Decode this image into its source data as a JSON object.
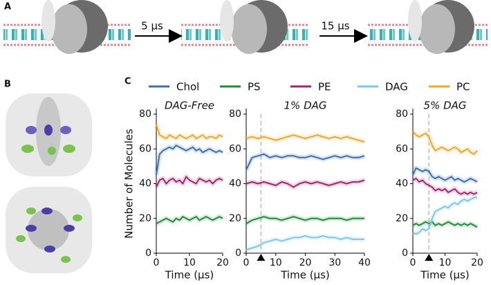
{
  "panel_labels": [
    "A",
    "B",
    "C"
  ],
  "arrows": [
    "5 µs",
    "15 µs"
  ],
  "chart_data": [
    {
      "type": "line",
      "title": "DAG-Free",
      "xlabel": "Time (µs)",
      "ylabel": "Number of Molecules",
      "x": [
        0,
        1,
        2,
        3,
        4,
        5,
        6,
        7,
        8,
        9,
        10,
        11,
        12,
        13,
        14,
        15,
        16,
        17,
        18,
        19,
        20
      ],
      "xlim": [
        0,
        20
      ],
      "xticks": [
        0,
        10,
        20
      ],
      "ylim": [
        0,
        80
      ],
      "yticks": [
        0,
        20,
        40,
        60,
        80
      ],
      "series": [
        {
          "name": "Chol",
          "color": "#3a6fb0",
          "values": [
            45,
            57,
            59,
            60,
            61,
            60,
            62,
            61,
            60,
            59,
            60,
            61,
            59,
            60,
            58,
            59,
            60,
            59,
            58,
            59,
            58
          ]
        },
        {
          "name": "PS",
          "color": "#1f8a3a",
          "values": [
            17,
            18,
            19,
            20,
            19,
            18,
            20,
            19,
            21,
            20,
            19,
            20,
            21,
            19,
            20,
            21,
            20,
            19,
            20,
            21,
            20
          ]
        },
        {
          "name": "PE",
          "color": "#a3246f",
          "values": [
            38,
            42,
            43,
            40,
            42,
            43,
            41,
            42,
            40,
            44,
            42,
            41,
            40,
            43,
            42,
            41,
            42,
            40,
            42,
            43,
            42
          ]
        },
        {
          "name": "PC",
          "color": "#f5a623",
          "values": [
            74,
            68,
            67,
            66,
            68,
            67,
            66,
            68,
            67,
            66,
            67,
            68,
            66,
            67,
            68,
            66,
            67,
            67,
            66,
            68,
            67
          ]
        }
      ]
    },
    {
      "type": "line",
      "title": "1% DAG",
      "xlabel": "Time (µs)",
      "x": [
        0,
        2,
        4,
        6,
        8,
        10,
        12,
        14,
        16,
        18,
        20,
        22,
        24,
        26,
        28,
        30,
        32,
        34,
        36,
        38,
        40
      ],
      "xlim": [
        0,
        40
      ],
      "xticks": [
        0,
        10,
        20,
        30,
        40
      ],
      "ylim": [
        0,
        80
      ],
      "yticks": [
        0,
        20,
        40,
        60,
        80
      ],
      "marker_x": 5,
      "series": [
        {
          "name": "Chol",
          "color": "#3a6fb0",
          "values": [
            48,
            55,
            56,
            57,
            55,
            56,
            55,
            56,
            56,
            55,
            55,
            56,
            55,
            54,
            55,
            56,
            55,
            56,
            55,
            55,
            56
          ]
        },
        {
          "name": "PS",
          "color": "#1f8a3a",
          "values": [
            17,
            19,
            20,
            21,
            20,
            20,
            19,
            20,
            21,
            20,
            19,
            20,
            20,
            19,
            20,
            20,
            20,
            19,
            20,
            20,
            20
          ]
        },
        {
          "name": "PE",
          "color": "#a3246f",
          "values": [
            40,
            41,
            40,
            41,
            40,
            39,
            41,
            40,
            38,
            40,
            41,
            40,
            41,
            40,
            39,
            40,
            41,
            40,
            41,
            41,
            42
          ]
        },
        {
          "name": "DAG",
          "color": "#7cc6ec",
          "values": [
            2,
            3,
            4,
            6,
            7,
            8,
            7,
            8,
            9,
            9,
            10,
            9,
            9,
            10,
            9,
            9,
            8,
            9,
            8,
            8,
            8
          ]
        },
        {
          "name": "PC",
          "color": "#f5a623",
          "values": [
            66,
            67,
            66,
            67,
            66,
            65,
            66,
            67,
            68,
            67,
            66,
            67,
            68,
            67,
            66,
            67,
            66,
            67,
            66,
            65,
            64
          ]
        }
      ]
    },
    {
      "type": "line",
      "title": "5% DAG",
      "xlabel": "Time (µs)",
      "x": [
        0,
        1,
        2,
        3,
        4,
        5,
        6,
        7,
        8,
        9,
        10,
        11,
        12,
        13,
        14,
        15,
        16,
        17,
        18,
        19,
        20
      ],
      "xlim": [
        0,
        20
      ],
      "xticks": [
        0,
        10,
        20
      ],
      "ylim": [
        0,
        80
      ],
      "yticks": [
        0,
        20,
        40,
        60,
        80
      ],
      "marker_x": 5,
      "series": [
        {
          "name": "Chol",
          "color": "#3a6fb0",
          "values": [
            45,
            49,
            48,
            47,
            48,
            47,
            44,
            43,
            44,
            43,
            42,
            43,
            44,
            42,
            43,
            42,
            41,
            42,
            43,
            42,
            41
          ]
        },
        {
          "name": "PS",
          "color": "#1f8a3a",
          "values": [
            16,
            17,
            16,
            17,
            18,
            17,
            18,
            16,
            17,
            16,
            17,
            18,
            17,
            16,
            17,
            16,
            17,
            16,
            17,
            16,
            15
          ]
        },
        {
          "name": "PE",
          "color": "#a3246f",
          "values": [
            42,
            43,
            41,
            42,
            40,
            39,
            38,
            36,
            37,
            36,
            37,
            35,
            36,
            37,
            35,
            34,
            35,
            34,
            35,
            34,
            35
          ]
        },
        {
          "name": "DAG",
          "color": "#7cc6ec",
          "values": [
            12,
            11,
            12,
            14,
            13,
            14,
            20,
            24,
            25,
            26,
            27,
            26,
            28,
            29,
            28,
            30,
            31,
            30,
            31,
            32,
            32
          ]
        },
        {
          "name": "PC",
          "color": "#f5a623",
          "values": [
            70,
            68,
            67,
            68,
            69,
            67,
            62,
            59,
            60,
            61,
            60,
            59,
            60,
            61,
            60,
            58,
            59,
            60,
            58,
            57,
            59
          ]
        }
      ]
    }
  ]
}
